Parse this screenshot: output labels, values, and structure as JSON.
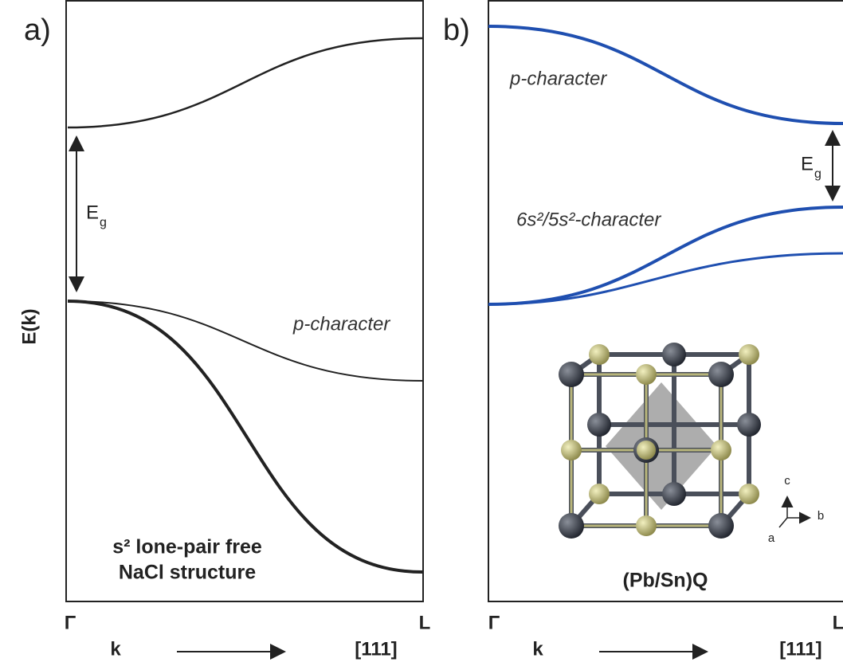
{
  "panel_a": {
    "label": "a)",
    "axis_label": "E(k)",
    "gap_label": "E",
    "gap_subscript": "g",
    "band_label": "p-character",
    "caption_line1": "s² lone-pair free",
    "caption_line2": "NaCl structure",
    "x_start": "Γ",
    "x_end": "L",
    "x_axis": "k",
    "direction": "[111]"
  },
  "panel_b": {
    "label": "b)",
    "band_label": "p-character",
    "gap_label": "E",
    "gap_subscript": "g",
    "lower_band_label": "6s²/5s²-character",
    "structure_label": "(Pb/Sn)Q",
    "axis_c": "c",
    "axis_b": "b",
    "axis_a": "a",
    "x_start": "Γ",
    "x_end": "L",
    "x_axis": "k",
    "direction": "[111]"
  }
}
